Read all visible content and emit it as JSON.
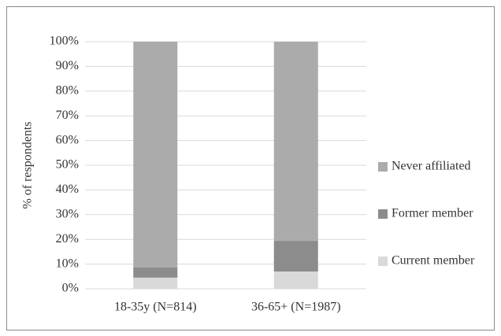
{
  "chart_data": {
    "type": "stacked_bar",
    "y_label": "% of respondents",
    "categories": [
      "18-35y (N=814)",
      "36-65+ (N=1987)"
    ],
    "series": [
      {
        "name": "Current member",
        "color": "#d9d9d9",
        "values": [
          4.5,
          7
        ]
      },
      {
        "name": "Former member",
        "color": "#8c8c8c",
        "values": [
          4.1,
          12.4
        ]
      },
      {
        "name": "Never affiliated",
        "color": "#ababab",
        "values": [
          91.4,
          80.6
        ]
      }
    ],
    "ylim": [
      0,
      100
    ],
    "yticks": [
      {
        "value": 0,
        "label": "0%"
      },
      {
        "value": 10,
        "label": "10%"
      },
      {
        "value": 20,
        "label": "20%"
      },
      {
        "value": 30,
        "label": "30%"
      },
      {
        "value": 40,
        "label": "40%"
      },
      {
        "value": 50,
        "label": "50%"
      },
      {
        "value": 60,
        "label": "60%"
      },
      {
        "value": 70,
        "label": "70%"
      },
      {
        "value": 80,
        "label": "80%"
      },
      {
        "value": 90,
        "label": "90%"
      },
      {
        "value": 100,
        "label": "100%"
      }
    ],
    "grid": true,
    "legend": "right"
  }
}
